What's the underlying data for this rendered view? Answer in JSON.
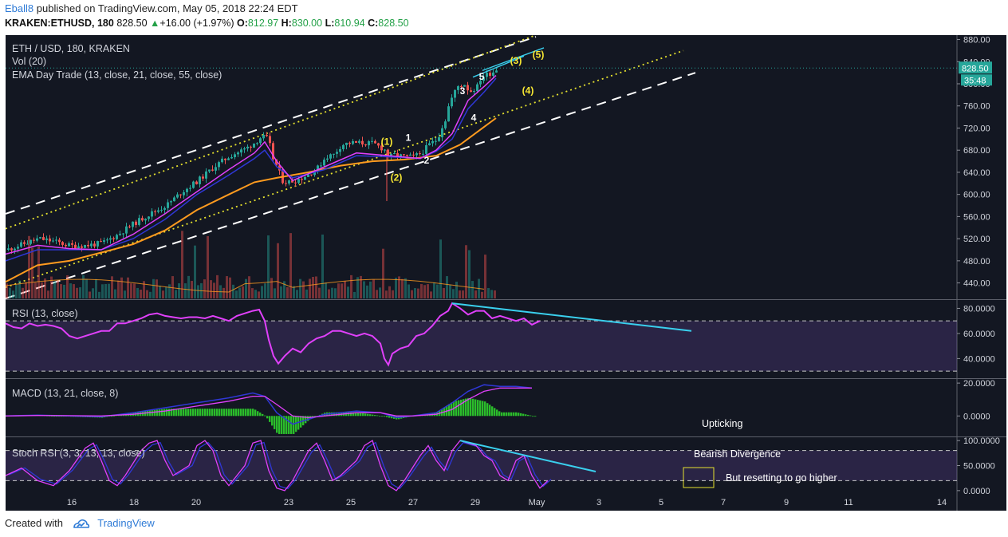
{
  "header": {
    "publisher": "Eball8",
    "published_text": "published on TradingView.com, May 05, 2018 22:24 EDT",
    "symbol": "KRAKEN:ETHUSD, 180",
    "price": "828.50",
    "change": "+16.00 (+1.97%)",
    "o_label": "O:",
    "o": "812.97",
    "h_label": "H:",
    "h": "830.00",
    "l_label": "L:",
    "l": "810.94",
    "c_label": "C:",
    "c": "828.50"
  },
  "footer": {
    "created_with": "Created with",
    "brand": "TradingView"
  },
  "colors": {
    "bg": "#131722",
    "up": "#26a69a",
    "down": "#ef5350",
    "ema_fast": "#e040fb",
    "ema_mid": "#2f37d6",
    "ema_slow": "#ff9b1f",
    "channel_dash": "#ffffff",
    "channel_dot": "#e6e22e",
    "trend_cyan": "#3ad0ee",
    "rsi": "#e040fb",
    "macd_line": "#2f37d6",
    "macd_signal": "#e040fb",
    "macd_hist": "#2bbd2b"
  },
  "chart_data": [
    {
      "type": "candlestick",
      "title": "ETH / USD, 180, KRAKEN",
      "legend": [
        "Vol (20)",
        "EMA Day Trade (13, close, 21, close, 55, close)"
      ],
      "x_ticks": [
        "16",
        "18",
        "20",
        "23",
        "25",
        "27",
        "29",
        "May",
        "3",
        "5",
        "7",
        "9",
        "11",
        "14"
      ],
      "y_ticks": [
        440,
        480,
        520,
        560,
        600,
        640,
        680,
        720,
        760,
        800,
        840,
        880
      ],
      "ylim": [
        412,
        888
      ],
      "last_price": "828.50",
      "countdown": "35:48",
      "close_path": [
        [
          0,
          500
        ],
        [
          20,
          510
        ],
        [
          40,
          520
        ],
        [
          60,
          515
        ],
        [
          80,
          507
        ],
        [
          100,
          508
        ],
        [
          120,
          512
        ],
        [
          140,
          528
        ],
        [
          160,
          548
        ],
        [
          180,
          565
        ],
        [
          200,
          580
        ],
        [
          220,
          605
        ],
        [
          240,
          625
        ],
        [
          260,
          650
        ],
        [
          280,
          670
        ],
        [
          300,
          683
        ],
        [
          312,
          695
        ],
        [
          320,
          705
        ],
        [
          328,
          700
        ],
        [
          334,
          665
        ],
        [
          340,
          645
        ],
        [
          346,
          625
        ],
        [
          352,
          622
        ],
        [
          360,
          625
        ],
        [
          370,
          630
        ],
        [
          380,
          638
        ],
        [
          390,
          648
        ],
        [
          400,
          668
        ],
        [
          410,
          672
        ],
        [
          420,
          690
        ],
        [
          430,
          693
        ],
        [
          440,
          693
        ],
        [
          460,
          692
        ],
        [
          475,
          680
        ],
        [
          480,
          665
        ],
        [
          484,
          672
        ],
        [
          500,
          668
        ],
        [
          510,
          668
        ],
        [
          520,
          675
        ],
        [
          530,
          690
        ],
        [
          540,
          700
        ],
        [
          545,
          720
        ],
        [
          550,
          735
        ],
        [
          555,
          765
        ],
        [
          565,
          795
        ],
        [
          575,
          800
        ],
        [
          580,
          785
        ],
        [
          590,
          795
        ],
        [
          595,
          812
        ],
        [
          610,
          822
        ],
        [
          615,
          828
        ]
      ],
      "ema_fast": [
        [
          0,
          492
        ],
        [
          40,
          508
        ],
        [
          80,
          502
        ],
        [
          120,
          500
        ],
        [
          160,
          528
        ],
        [
          200,
          565
        ],
        [
          240,
          605
        ],
        [
          280,
          645
        ],
        [
          312,
          675
        ],
        [
          325,
          695
        ],
        [
          340,
          660
        ],
        [
          360,
          625
        ],
        [
          400,
          650
        ],
        [
          440,
          675
        ],
        [
          480,
          670
        ],
        [
          520,
          665
        ],
        [
          540,
          680
        ],
        [
          560,
          710
        ],
        [
          580,
          770
        ],
        [
          600,
          795
        ],
        [
          615,
          815
        ]
      ],
      "ema_mid": [
        [
          0,
          480
        ],
        [
          40,
          500
        ],
        [
          80,
          500
        ],
        [
          120,
          500
        ],
        [
          160,
          520
        ],
        [
          200,
          555
        ],
        [
          240,
          600
        ],
        [
          280,
          635
        ],
        [
          312,
          665
        ],
        [
          325,
          680
        ],
        [
          340,
          650
        ],
        [
          360,
          630
        ],
        [
          400,
          645
        ],
        [
          440,
          670
        ],
        [
          480,
          668
        ],
        [
          520,
          665
        ],
        [
          540,
          678
        ],
        [
          560,
          700
        ],
        [
          580,
          755
        ],
        [
          600,
          785
        ],
        [
          615,
          810
        ]
      ],
      "ema_slow": [
        [
          0,
          442
        ],
        [
          40,
          472
        ],
        [
          80,
          480
        ],
        [
          120,
          495
        ],
        [
          160,
          510
        ],
        [
          200,
          535
        ],
        [
          240,
          572
        ],
        [
          280,
          600
        ],
        [
          312,
          622
        ],
        [
          340,
          630
        ],
        [
          380,
          640
        ],
        [
          420,
          652
        ],
        [
          460,
          660
        ],
        [
          500,
          663
        ],
        [
          540,
          670
        ],
        [
          570,
          690
        ],
        [
          600,
          722
        ],
        [
          615,
          738
        ]
      ],
      "channel_dashed": [
        [
          [
            0,
            565
          ],
          [
            665,
            885
          ]
        ],
        [
          [
            0,
            412
          ],
          [
            865,
            820
          ]
        ]
      ],
      "channel_dotted": [
        [
          [
            0,
            538
          ],
          [
            665,
            888
          ]
        ],
        [
          [
            0,
            432
          ],
          [
            850,
            860
          ]
        ]
      ],
      "trend_cyan": [
        [
          [
            586,
            812
          ],
          [
            650,
            850
          ]
        ],
        [
          [
            598,
            824
          ],
          [
            675,
            865
          ]
        ]
      ],
      "wave_labels": [
        {
          "text": "(1)",
          "x": 478,
          "y": 690,
          "color": "yellow"
        },
        {
          "text": "(2)",
          "x": 490,
          "y": 625,
          "color": "yellow"
        },
        {
          "text": "1",
          "x": 505,
          "y": 697,
          "color": "white"
        },
        {
          "text": "2",
          "x": 528,
          "y": 656,
          "color": "white"
        },
        {
          "text": "3",
          "x": 573,
          "y": 781,
          "color": "white"
        },
        {
          "text": "4",
          "x": 587,
          "y": 733,
          "color": "white"
        },
        {
          "text": "5",
          "x": 597,
          "y": 807,
          "color": "white"
        },
        {
          "text": "(3)",
          "x": 640,
          "y": 836,
          "color": "yellow"
        },
        {
          "text": "(4)",
          "x": 655,
          "y": 782,
          "color": "yellow"
        },
        {
          "text": "(5)",
          "x": 668,
          "y": 847,
          "color": "yellow"
        }
      ]
    },
    {
      "type": "line",
      "title": "RSI (13, close)",
      "y_ticks": [
        "80.0000",
        "60.0000",
        "40.0000"
      ],
      "ylim": [
        25,
        86
      ],
      "bands": [
        30,
        70
      ],
      "values": [
        [
          0,
          68
        ],
        [
          10,
          65
        ],
        [
          20,
          64
        ],
        [
          30,
          68
        ],
        [
          40,
          66
        ],
        [
          50,
          67
        ],
        [
          60,
          66
        ],
        [
          70,
          64
        ],
        [
          80,
          58
        ],
        [
          90,
          56
        ],
        [
          100,
          58
        ],
        [
          110,
          60
        ],
        [
          120,
          62
        ],
        [
          130,
          62
        ],
        [
          140,
          68
        ],
        [
          150,
          68
        ],
        [
          160,
          70
        ],
        [
          170,
          72
        ],
        [
          180,
          75
        ],
        [
          190,
          76
        ],
        [
          200,
          74
        ],
        [
          210,
          73
        ],
        [
          220,
          72
        ],
        [
          230,
          73
        ],
        [
          240,
          73
        ],
        [
          250,
          72
        ],
        [
          260,
          74
        ],
        [
          270,
          72
        ],
        [
          280,
          70
        ],
        [
          290,
          74
        ],
        [
          300,
          76
        ],
        [
          310,
          78
        ],
        [
          318,
          79
        ],
        [
          325,
          70
        ],
        [
          330,
          55
        ],
        [
          336,
          42
        ],
        [
          342,
          36
        ],
        [
          350,
          42
        ],
        [
          360,
          48
        ],
        [
          370,
          45
        ],
        [
          380,
          52
        ],
        [
          390,
          56
        ],
        [
          400,
          58
        ],
        [
          410,
          62
        ],
        [
          420,
          62
        ],
        [
          430,
          60
        ],
        [
          440,
          58
        ],
        [
          450,
          60
        ],
        [
          460,
          58
        ],
        [
          470,
          52
        ],
        [
          475,
          40
        ],
        [
          480,
          35
        ],
        [
          485,
          44
        ],
        [
          495,
          48
        ],
        [
          505,
          50
        ],
        [
          515,
          58
        ],
        [
          525,
          60
        ],
        [
          535,
          66
        ],
        [
          545,
          74
        ],
        [
          555,
          78
        ],
        [
          560,
          84
        ],
        [
          570,
          80
        ],
        [
          580,
          75
        ],
        [
          590,
          78
        ],
        [
          600,
          78
        ],
        [
          610,
          72
        ],
        [
          620,
          74
        ],
        [
          630,
          72
        ],
        [
          640,
          70
        ],
        [
          650,
          72
        ],
        [
          660,
          67
        ],
        [
          670,
          70
        ]
      ],
      "trend": [
        [
          560,
          84
        ],
        [
          860,
          62
        ]
      ]
    },
    {
      "type": "line",
      "title": "MACD (13, 21, close, 8)",
      "y_ticks": [
        "20.0000",
        "0.0000"
      ],
      "ylim": [
        -12,
        22
      ],
      "macd": [
        [
          0,
          0
        ],
        [
          40,
          0.5
        ],
        [
          80,
          0
        ],
        [
          120,
          -0.5
        ],
        [
          160,
          2
        ],
        [
          200,
          5
        ],
        [
          240,
          8
        ],
        [
          280,
          11
        ],
        [
          310,
          14
        ],
        [
          325,
          12
        ],
        [
          340,
          2
        ],
        [
          360,
          -5
        ],
        [
          380,
          -2
        ],
        [
          400,
          1
        ],
        [
          440,
          3
        ],
        [
          470,
          2
        ],
        [
          490,
          -1
        ],
        [
          510,
          0
        ],
        [
          540,
          2
        ],
        [
          560,
          8
        ],
        [
          580,
          15
        ],
        [
          600,
          19
        ],
        [
          620,
          18
        ],
        [
          640,
          18
        ],
        [
          660,
          17
        ]
      ],
      "signal": [
        [
          0,
          0
        ],
        [
          40,
          0.3
        ],
        [
          80,
          0.2
        ],
        [
          120,
          0
        ],
        [
          160,
          1
        ],
        [
          200,
          3
        ],
        [
          240,
          6
        ],
        [
          280,
          9
        ],
        [
          310,
          12
        ],
        [
          325,
          12
        ],
        [
          340,
          7
        ],
        [
          360,
          0
        ],
        [
          380,
          -1
        ],
        [
          400,
          0
        ],
        [
          440,
          2
        ],
        [
          470,
          2
        ],
        [
          490,
          0
        ],
        [
          510,
          0
        ],
        [
          540,
          1
        ],
        [
          560,
          4
        ],
        [
          580,
          10
        ],
        [
          600,
          15
        ],
        [
          620,
          17
        ],
        [
          640,
          17
        ],
        [
          660,
          17
        ]
      ],
      "annotation": "Upticking"
    },
    {
      "type": "line",
      "title": "Stoch RSI (3, 3, 13, 13, close)",
      "y_ticks": [
        "100.0000",
        "50.0000",
        "0.0000"
      ],
      "ylim": [
        -5,
        105
      ],
      "bands": [
        20,
        80
      ],
      "values": [
        [
          0,
          30
        ],
        [
          20,
          45
        ],
        [
          40,
          20
        ],
        [
          60,
          10
        ],
        [
          80,
          40
        ],
        [
          100,
          85
        ],
        [
          110,
          95
        ],
        [
          120,
          60
        ],
        [
          130,
          20
        ],
        [
          140,
          10
        ],
        [
          150,
          30
        ],
        [
          170,
          80
        ],
        [
          180,
          95
        ],
        [
          190,
          100
        ],
        [
          200,
          60
        ],
        [
          210,
          30
        ],
        [
          230,
          50
        ],
        [
          240,
          90
        ],
        [
          250,
          100
        ],
        [
          260,
          80
        ],
        [
          270,
          30
        ],
        [
          280,
          10
        ],
        [
          300,
          50
        ],
        [
          310,
          95
        ],
        [
          320,
          100
        ],
        [
          330,
          40
        ],
        [
          340,
          5
        ],
        [
          350,
          0
        ],
        [
          360,
          20
        ],
        [
          380,
          80
        ],
        [
          390,
          95
        ],
        [
          400,
          60
        ],
        [
          410,
          20
        ],
        [
          420,
          30
        ],
        [
          440,
          60
        ],
        [
          450,
          90
        ],
        [
          460,
          100
        ],
        [
          470,
          50
        ],
        [
          480,
          10
        ],
        [
          490,
          0
        ],
        [
          500,
          20
        ],
        [
          520,
          70
        ],
        [
          530,
          90
        ],
        [
          540,
          60
        ],
        [
          550,
          40
        ],
        [
          560,
          80
        ],
        [
          570,
          100
        ],
        [
          580,
          95
        ],
        [
          590,
          90
        ],
        [
          600,
          70
        ],
        [
          610,
          60
        ],
        [
          620,
          30
        ],
        [
          630,
          20
        ],
        [
          640,
          60
        ],
        [
          650,
          70
        ],
        [
          660,
          30
        ],
        [
          670,
          5
        ],
        [
          680,
          20
        ]
      ],
      "trend": [
        [
          570,
          100
        ],
        [
          740,
          38
        ]
      ],
      "annotations": [
        "Bearish Divergence",
        "But resetting to go higher"
      ]
    }
  ]
}
